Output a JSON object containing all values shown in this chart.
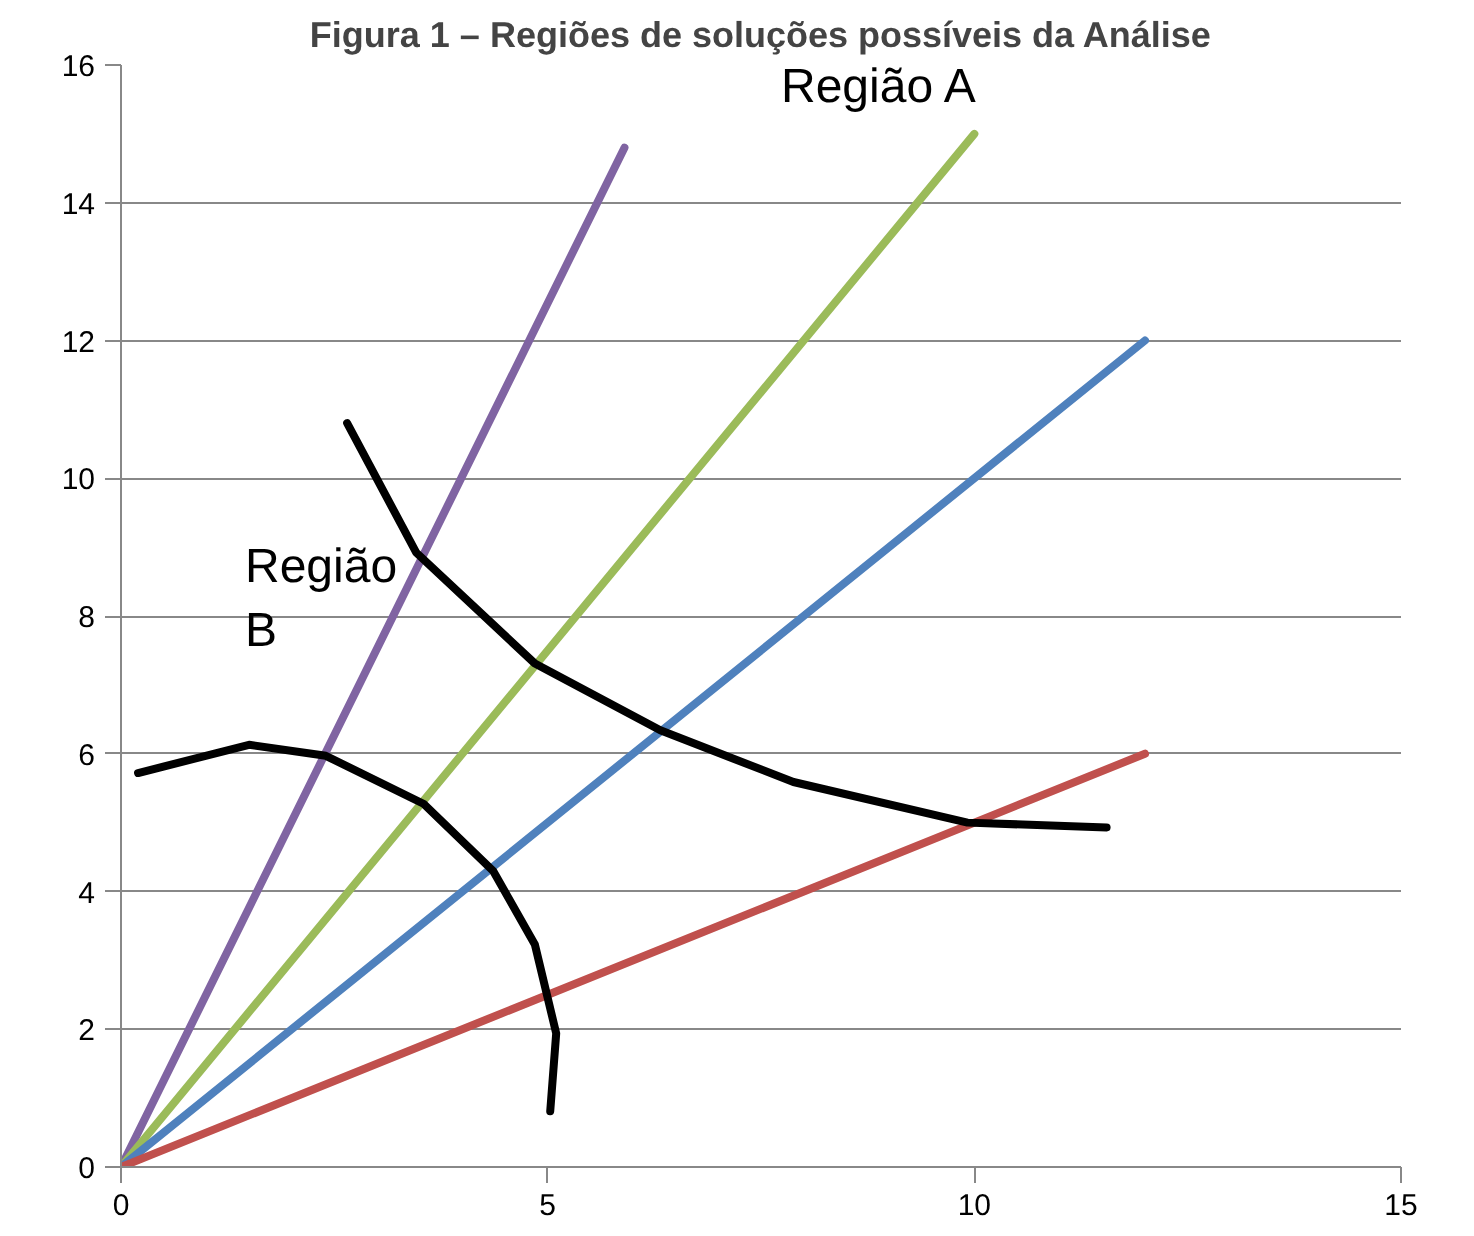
{
  "chart_data": {
    "type": "line",
    "title": "Figura 1 – Regiões de soluções possíveis da Análise",
    "xlim": [
      0,
      15
    ],
    "xticks": [
      0,
      5,
      10,
      15
    ],
    "ylim": [
      0,
      16
    ],
    "yticks": [
      0,
      2,
      4,
      6,
      8,
      10,
      12,
      14,
      16
    ],
    "grid": "y",
    "marker": "none",
    "line_style": "solid",
    "series": [
      {
        "color": "#8064a2",
        "x": [
          0,
          5.9
        ],
        "values": [
          0,
          14.8
        ]
      },
      {
        "color": "#9bbb59",
        "x": [
          0,
          10
        ],
        "values": [
          0,
          15
        ]
      },
      {
        "color": "#4f81bd",
        "x": [
          0,
          12
        ],
        "values": [
          0,
          12
        ]
      },
      {
        "color": "#c0504d",
        "x": [
          0,
          12
        ],
        "values": [
          0,
          6
        ]
      },
      {
        "color": "#000000",
        "x": [
          2.65,
          3.46,
          4.85,
          6.32,
          7.88,
          9.92,
          11.55
        ],
        "values": [
          10.8,
          8.92,
          7.31,
          6.34,
          5.59,
          5.0,
          4.93
        ]
      },
      {
        "color": "#000000",
        "x": [
          0.2,
          1.5,
          2.4,
          3.55,
          4.36,
          4.85,
          5.1,
          5.03
        ],
        "values": [
          5.72,
          6.13,
          5.97,
          5.27,
          4.3,
          3.23,
          1.94,
          0.81
        ]
      }
    ],
    "annotations": [
      "Região A",
      "Região\nB"
    ]
  }
}
